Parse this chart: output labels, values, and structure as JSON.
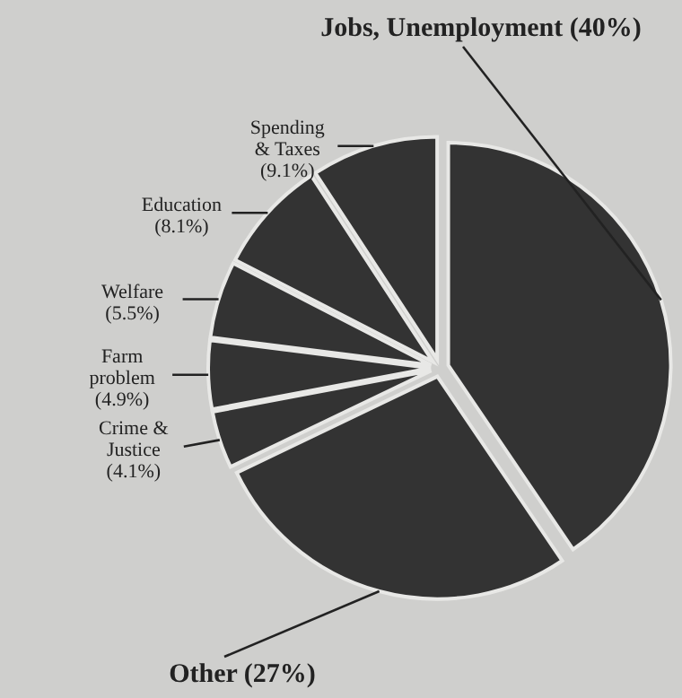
{
  "chart_data": {
    "type": "pie",
    "categories": [
      "Jobs, Unemployment",
      "Other",
      "Crime & Justice",
      "Farm problem",
      "Welfare",
      "Education",
      "Spending & Taxes"
    ],
    "values": [
      40,
      27,
      4.1,
      4.9,
      5.5,
      8.1,
      9.1
    ],
    "value_labels": [
      "(40%)",
      "(27%)",
      "(4.1%)",
      "(4.9%)",
      "(5.5%)",
      "(8.1%)",
      "(9.1%)"
    ],
    "colors": [
      "#333333",
      "#333333",
      "#333333",
      "#333333",
      "#333333",
      "#333333",
      "#333333"
    ]
  }
}
